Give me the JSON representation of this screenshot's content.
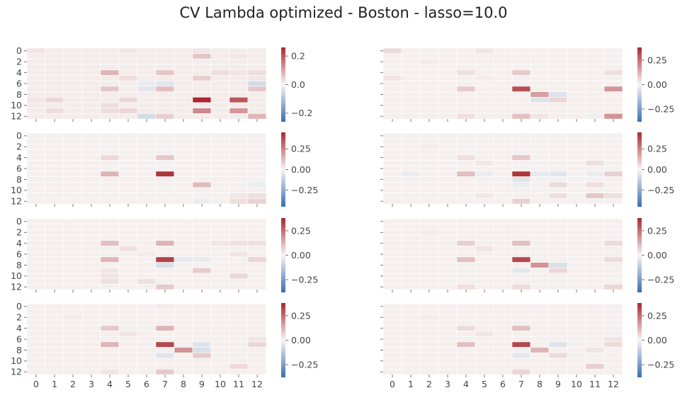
{
  "title": "CV Lambda optimized - Boston - lasso=10.0",
  "colors": {
    "negative": "#3b6eaf",
    "neutral": "#f7f5f4",
    "positive": "#a8282f",
    "cell_border": "#ffffff"
  },
  "chart_data": {
    "type": "heatmap",
    "title": "CV Lambda optimized - Boston - lasso=10.0",
    "grid_rows": 4,
    "grid_cols": 2,
    "x_ticks": [
      "0",
      "1",
      "2",
      "3",
      "4",
      "5",
      "6",
      "7",
      "8",
      "9",
      "10",
      "11",
      "12"
    ],
    "y_ticks": [
      "0",
      "2",
      "4",
      "6",
      "8",
      "10",
      "12"
    ],
    "colormap": "diverging blue-white-red",
    "panels": [
      {
        "row": 0,
        "col": 0,
        "vmin": -0.26,
        "vmax": 0.26,
        "cbar_ticks": [
          0.2,
          0.0,
          -0.2
        ],
        "cbar_labels": [
          "0.2",
          "0.0",
          "−0.2"
        ],
        "cells": [
          [
            0,
            0,
            0.02
          ],
          [
            0,
            5,
            0.02
          ],
          [
            0,
            9,
            0.02
          ],
          [
            1,
            9,
            0.06
          ],
          [
            1,
            11,
            0.02
          ],
          [
            4,
            4,
            0.08
          ],
          [
            4,
            7,
            0.06
          ],
          [
            4,
            10,
            0.03
          ],
          [
            4,
            11,
            0.02
          ],
          [
            4,
            12,
            0.03
          ],
          [
            5,
            5,
            0.03
          ],
          [
            5,
            9,
            0.05
          ],
          [
            5,
            12,
            0.02
          ],
          [
            6,
            6,
            -0.02
          ],
          [
            6,
            7,
            -0.03
          ],
          [
            6,
            12,
            -0.05
          ],
          [
            7,
            4,
            0.06
          ],
          [
            7,
            6,
            -0.03
          ],
          [
            7,
            7,
            0.07
          ],
          [
            7,
            12,
            0.06
          ],
          [
            9,
            0,
            0.02
          ],
          [
            9,
            1,
            0.04
          ],
          [
            9,
            5,
            0.04
          ],
          [
            9,
            9,
            0.26
          ],
          [
            9,
            11,
            0.2
          ],
          [
            10,
            4,
            0.03
          ],
          [
            11,
            1,
            0.03
          ],
          [
            11,
            4,
            0.03
          ],
          [
            11,
            5,
            0.04
          ],
          [
            11,
            9,
            0.14
          ],
          [
            11,
            11,
            0.12
          ],
          [
            12,
            6,
            -0.05
          ],
          [
            12,
            7,
            0.05
          ],
          [
            12,
            12,
            0.08
          ]
        ]
      },
      {
        "row": 0,
        "col": 1,
        "vmin": -0.38,
        "vmax": 0.38,
        "cbar_ticks": [
          0.25,
          0.0,
          -0.25
        ],
        "cbar_labels": [
          "0.25",
          "0.00",
          "−0.25"
        ],
        "cells": [
          [
            0,
            0,
            0.05
          ],
          [
            0,
            5,
            0.03
          ],
          [
            2,
            2,
            0.02
          ],
          [
            4,
            4,
            0.04
          ],
          [
            4,
            7,
            0.08
          ],
          [
            4,
            12,
            0.04
          ],
          [
            5,
            0,
            0.03
          ],
          [
            5,
            5,
            0.02
          ],
          [
            7,
            4,
            0.08
          ],
          [
            7,
            7,
            0.31
          ],
          [
            7,
            12,
            0.18
          ],
          [
            8,
            8,
            0.16
          ],
          [
            8,
            9,
            -0.05
          ],
          [
            9,
            8,
            -0.05
          ],
          [
            9,
            9,
            0.06
          ],
          [
            12,
            4,
            0.04
          ],
          [
            12,
            7,
            0.1
          ],
          [
            12,
            8,
            0.03
          ],
          [
            12,
            11,
            -0.02
          ],
          [
            12,
            12,
            0.18
          ]
        ]
      },
      {
        "row": 1,
        "col": 0,
        "vmin": -0.45,
        "vmax": 0.45,
        "cbar_ticks": [
          0.25,
          0.0,
          -0.25
        ],
        "cbar_labels": [
          "0.25",
          "0.00",
          "−0.25"
        ],
        "cells": [
          [
            4,
            4,
            0.06
          ],
          [
            4,
            7,
            0.1
          ],
          [
            7,
            4,
            0.14
          ],
          [
            7,
            7,
            0.42
          ],
          [
            9,
            9,
            0.13
          ],
          [
            9,
            12,
            -0.03
          ],
          [
            11,
            11,
            0.03
          ],
          [
            11,
            12,
            0.05
          ],
          [
            12,
            9,
            -0.03
          ],
          [
            12,
            11,
            0.05
          ],
          [
            12,
            12,
            0.08
          ]
        ]
      },
      {
        "row": 1,
        "col": 1,
        "vmin": -0.45,
        "vmax": 0.45,
        "cbar_ticks": [
          0.25,
          0.0,
          -0.25
        ],
        "cbar_labels": [
          "0.25",
          "0.00",
          "−0.25"
        ],
        "cells": [
          [
            2,
            2,
            0.02
          ],
          [
            4,
            4,
            0.05
          ],
          [
            4,
            7,
            0.1
          ],
          [
            5,
            5,
            0.03
          ],
          [
            5,
            11,
            0.05
          ],
          [
            7,
            1,
            -0.03
          ],
          [
            7,
            4,
            0.12
          ],
          [
            7,
            5,
            -0.03
          ],
          [
            7,
            7,
            0.42
          ],
          [
            7,
            8,
            -0.04
          ],
          [
            7,
            9,
            -0.05
          ],
          [
            7,
            11,
            -0.03
          ],
          [
            7,
            12,
            0.08
          ],
          [
            8,
            7,
            -0.05
          ],
          [
            9,
            7,
            -0.03
          ],
          [
            9,
            9,
            0.06
          ],
          [
            9,
            11,
            0.05
          ],
          [
            11,
            5,
            0.03
          ],
          [
            11,
            9,
            0.05
          ],
          [
            11,
            11,
            0.1
          ],
          [
            11,
            12,
            0.05
          ],
          [
            12,
            7,
            0.08
          ]
        ]
      },
      {
        "row": 2,
        "col": 0,
        "vmin": -0.38,
        "vmax": 0.38,
        "cbar_ticks": [
          0.25,
          0.0,
          -0.25
        ],
        "cbar_labels": [
          "0.25",
          "0.00",
          "−0.25"
        ],
        "cells": [
          [
            4,
            4,
            0.1
          ],
          [
            4,
            7,
            0.12
          ],
          [
            4,
            10,
            0.03
          ],
          [
            4,
            11,
            0.04
          ],
          [
            4,
            12,
            0.04
          ],
          [
            5,
            5,
            0.04
          ],
          [
            6,
            6,
            0.02
          ],
          [
            6,
            11,
            0.03
          ],
          [
            7,
            4,
            0.12
          ],
          [
            7,
            7,
            0.33
          ],
          [
            7,
            8,
            -0.03
          ],
          [
            7,
            9,
            -0.03
          ],
          [
            7,
            12,
            0.06
          ],
          [
            8,
            7,
            -0.06
          ],
          [
            9,
            4,
            0.03
          ],
          [
            9,
            9,
            0.08
          ],
          [
            10,
            4,
            0.03
          ],
          [
            10,
            11,
            0.06
          ],
          [
            11,
            4,
            0.04
          ],
          [
            11,
            6,
            0.04
          ],
          [
            12,
            7,
            0.08
          ]
        ]
      },
      {
        "row": 2,
        "col": 1,
        "vmin": -0.38,
        "vmax": 0.38,
        "cbar_ticks": [
          0.25,
          0.0,
          -0.25
        ],
        "cbar_labels": [
          "0.25",
          "0.00",
          "−0.25"
        ],
        "cells": [
          [
            2,
            2,
            0.02
          ],
          [
            4,
            4,
            0.07
          ],
          [
            4,
            7,
            0.1
          ],
          [
            4,
            12,
            0.05
          ],
          [
            5,
            5,
            0.03
          ],
          [
            7,
            4,
            0.1
          ],
          [
            7,
            7,
            0.32
          ],
          [
            7,
            12,
            0.05
          ],
          [
            8,
            8,
            0.18
          ],
          [
            8,
            9,
            -0.06
          ],
          [
            9,
            7,
            -0.04
          ],
          [
            9,
            9,
            0.06
          ],
          [
            12,
            4,
            0.04
          ],
          [
            12,
            7,
            0.05
          ],
          [
            12,
            12,
            0.06
          ]
        ]
      },
      {
        "row": 3,
        "col": 0,
        "vmin": -0.38,
        "vmax": 0.38,
        "cbar_ticks": [
          0.25,
          0.0,
          -0.25
        ],
        "cbar_labels": [
          "0.25",
          "0.00",
          "−0.25"
        ],
        "cells": [
          [
            0,
            7,
            0.02
          ],
          [
            2,
            2,
            0.02
          ],
          [
            4,
            4,
            0.08
          ],
          [
            4,
            7,
            0.12
          ],
          [
            5,
            5,
            0.03
          ],
          [
            6,
            12,
            0.03
          ],
          [
            7,
            4,
            0.12
          ],
          [
            7,
            7,
            0.32
          ],
          [
            7,
            9,
            -0.05
          ],
          [
            7,
            12,
            0.06
          ],
          [
            8,
            8,
            0.18
          ],
          [
            8,
            9,
            -0.06
          ],
          [
            9,
            7,
            -0.05
          ],
          [
            9,
            9,
            0.08
          ],
          [
            11,
            11,
            0.05
          ],
          [
            12,
            4,
            0.03
          ],
          [
            12,
            7,
            0.08
          ]
        ]
      },
      {
        "row": 3,
        "col": 1,
        "vmin": -0.38,
        "vmax": 0.38,
        "cbar_ticks": [
          0.25,
          0.0,
          -0.25
        ],
        "cbar_labels": [
          "0.25",
          "0.00",
          "−0.25"
        ],
        "cells": [
          [
            2,
            2,
            0.02
          ],
          [
            4,
            4,
            0.05
          ],
          [
            4,
            7,
            0.1
          ],
          [
            5,
            5,
            0.03
          ],
          [
            6,
            12,
            0.03
          ],
          [
            7,
            4,
            0.1
          ],
          [
            7,
            7,
            0.32
          ],
          [
            7,
            9,
            -0.05
          ],
          [
            7,
            12,
            0.05
          ],
          [
            8,
            8,
            0.12
          ],
          [
            8,
            11,
            0.03
          ],
          [
            9,
            7,
            -0.04
          ],
          [
            9,
            9,
            0.05
          ],
          [
            11,
            11,
            0.07
          ],
          [
            12,
            7,
            0.06
          ]
        ]
      }
    ]
  }
}
